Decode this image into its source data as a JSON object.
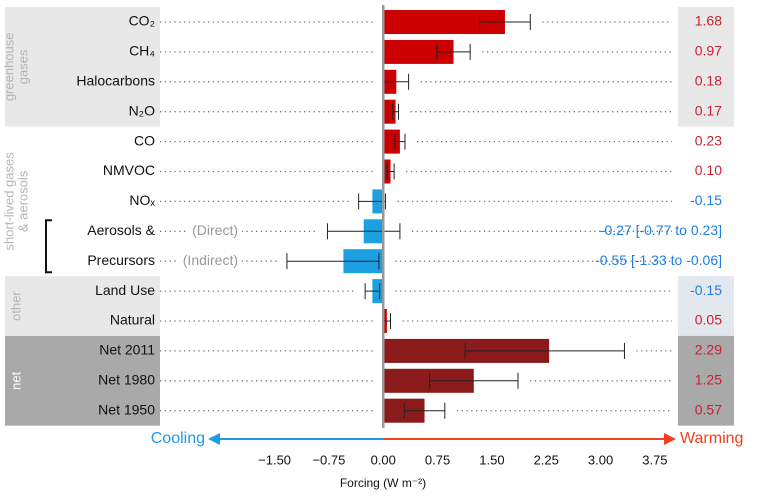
{
  "chart_data": {
    "type": "bar",
    "xlabel": "Forcing (W m⁻²)",
    "categories": [
      "CO₂",
      "CH₄",
      "Halocarbons",
      "N₂O",
      "CO",
      "NMVOC",
      "NOₓ",
      "Aerosols &",
      "Precursors",
      "Land Use",
      "Natural",
      "Net 2011",
      "Net 1980",
      "Net 1950"
    ],
    "series": [
      {
        "values": [
          1.68,
          0.97,
          0.18,
          0.17,
          0.23,
          0.1,
          -0.15,
          -0.27,
          -0.55,
          -0.15,
          0.05,
          2.29,
          1.25,
          0.57
        ],
        "err_low": [
          1.33,
          0.74,
          0.01,
          0.13,
          0.16,
          0.05,
          -0.34,
          -0.77,
          -1.33,
          -0.25,
          0.0,
          1.13,
          0.64,
          0.29
        ],
        "err_high": [
          2.03,
          1.2,
          0.35,
          0.21,
          0.3,
          0.15,
          0.03,
          0.23,
          -0.06,
          -0.05,
          0.1,
          3.33,
          1.86,
          0.85
        ],
        "colors": [
          "#cc0000",
          "#cc0000",
          "#cc0000",
          "#cc0000",
          "#cc0000",
          "#cc0000",
          "#1ba1e2",
          "#1ba1e2",
          "#1ba1e2",
          "#1ba1e2",
          "#cc0000",
          "#8b1a1a",
          "#8b1a1a",
          "#8b1a1a"
        ],
        "value_labels": [
          "1.68",
          "0.97",
          "0.18",
          "0.17",
          "0.23",
          "0.10",
          "-0.15",
          "-0.27 [-0.77 to 0.23]",
          "-0.55 [-1.33 to -0.06]",
          "-0.15",
          "0.05",
          "2.29",
          "1.25",
          "0.57"
        ]
      }
    ],
    "xlim": [
      -1.95,
      4.0
    ],
    "xticks": [
      {
        "value": -1.5,
        "label": "−1.50"
      },
      {
        "value": -0.75,
        "label": "−0.75"
      },
      {
        "value": 0,
        "label": "0.00"
      },
      {
        "value": 0.75,
        "label": "0.75"
      },
      {
        "value": 1.5,
        "label": "1.50"
      },
      {
        "value": 2.25,
        "label": "2.25"
      },
      {
        "value": 3,
        "label": "3.00"
      },
      {
        "value": 3.75,
        "label": "3.75"
      }
    ],
    "annotations": [
      {
        "text": "(Direct)",
        "category": 7
      },
      {
        "text": "(Indirect)",
        "category": 8
      }
    ],
    "groups": [
      {
        "lines": [
          "greenhouse",
          "gases"
        ],
        "size": 4,
        "shade": "#e8e8e8",
        "text_color": "#b5b5b5",
        "panel_shade": "#e8e8e8"
      },
      {
        "lines": [
          "short-lived gases",
          "& aerosols"
        ],
        "size": 5,
        "text_color": "#b5b5b5"
      },
      {
        "lines": [
          "other"
        ],
        "size": 2,
        "shade": "#e8e8e8",
        "text_color": "#b5b5b5",
        "panel_shade": "#e3e7ee"
      },
      {
        "lines": [
          "net"
        ],
        "size": 3,
        "shade": "#a9a9a9",
        "text_color": "#ffffff",
        "panel_shade": "#a9a9a9"
      }
    ],
    "cooling": "Cooling",
    "warming": "Warming",
    "cooling_color": "#1e9be6",
    "warming_color": "#f0401c",
    "positive_label_color": "#cc1f2f",
    "negative_label_color": "#1e7fe0"
  }
}
